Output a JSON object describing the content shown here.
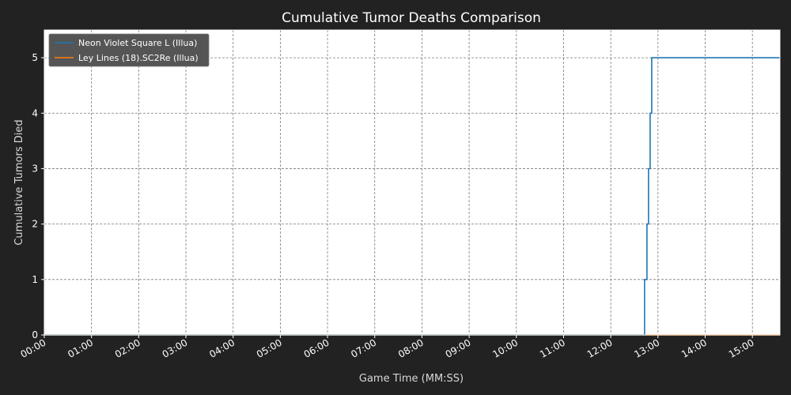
{
  "chart_data": {
    "type": "line",
    "title": "Cumulative Tumor Deaths Comparison",
    "xlabel": "Game Time (MM:SS)",
    "ylabel": "Cumulative Tumors Died",
    "xlim": [
      "00:00",
      "15:35"
    ],
    "ylim": [
      0,
      5.5
    ],
    "grid": true,
    "legend_position": "top-left",
    "x_ticks": [
      "00:00",
      "01:00",
      "02:00",
      "03:00",
      "04:00",
      "05:00",
      "06:00",
      "07:00",
      "08:00",
      "09:00",
      "10:00",
      "11:00",
      "12:00",
      "13:00",
      "14:00",
      "15:00"
    ],
    "y_ticks": [
      0,
      1,
      2,
      3,
      4,
      5
    ],
    "step": "post",
    "series": [
      {
        "name": "Neon Violet Square L (Illua)",
        "color": "#1f77b4",
        "x": [
          "00:00",
          "12:43",
          "12:46",
          "12:48",
          "12:50",
          "12:52",
          "15:35"
        ],
        "y": [
          0,
          1,
          2,
          3,
          4,
          5,
          5
        ]
      },
      {
        "name": "Ley Lines (18).SC2Re (Illua)",
        "color": "#ff7f0e",
        "x": [
          "00:00",
          "15:35"
        ],
        "y": [
          0,
          0
        ]
      }
    ]
  },
  "colors": {
    "figure_background": "#222222",
    "plot_background": "#ffffff",
    "legend_background": "#555555"
  }
}
